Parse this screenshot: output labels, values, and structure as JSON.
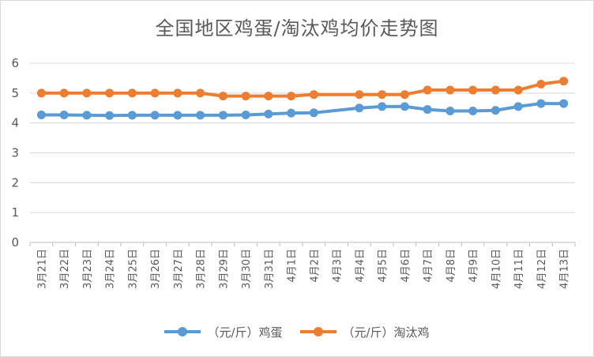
{
  "chart_data": {
    "type": "line",
    "title": "全国地区鸡蛋/淘汰鸡均价走势图",
    "xlabel": "",
    "ylabel": "",
    "categories": [
      "3月21日",
      "3月22日",
      "3月23日",
      "3月24日",
      "3月25日",
      "3月26日",
      "3月27日",
      "3月28日",
      "3月29日",
      "3月30日",
      "3月31日",
      "4月1日",
      "4月2日",
      "4月3日",
      "4月4日",
      "4月5日",
      "4月6日",
      "4月7日",
      "4月8日",
      "4月9日",
      "4月10日",
      "4月11日",
      "4月12日",
      "4月13日"
    ],
    "series": [
      {
        "name": "（元/斤）鸡蛋",
        "color": "#5b9bd5",
        "values": [
          4.27,
          4.27,
          4.26,
          4.25,
          4.26,
          4.26,
          4.26,
          4.26,
          4.26,
          4.27,
          4.3,
          4.33,
          4.34,
          null,
          4.5,
          4.55,
          4.55,
          4.45,
          4.4,
          4.4,
          4.42,
          4.55,
          4.65,
          4.65
        ]
      },
      {
        "name": "（元/斤）淘汰鸡",
        "color": "#ed7d31",
        "values": [
          5.0,
          5.0,
          5.0,
          5.0,
          5.0,
          5.0,
          5.0,
          5.0,
          4.9,
          4.9,
          4.9,
          4.9,
          4.95,
          null,
          4.95,
          4.95,
          4.95,
          5.1,
          5.1,
          5.1,
          5.1,
          5.1,
          5.3,
          5.4
        ]
      }
    ],
    "ylim": [
      0,
      6
    ],
    "yticks": [
      "0",
      "1",
      "2",
      "3",
      "4",
      "5",
      "6"
    ],
    "grid": true,
    "legend": "bottom"
  }
}
